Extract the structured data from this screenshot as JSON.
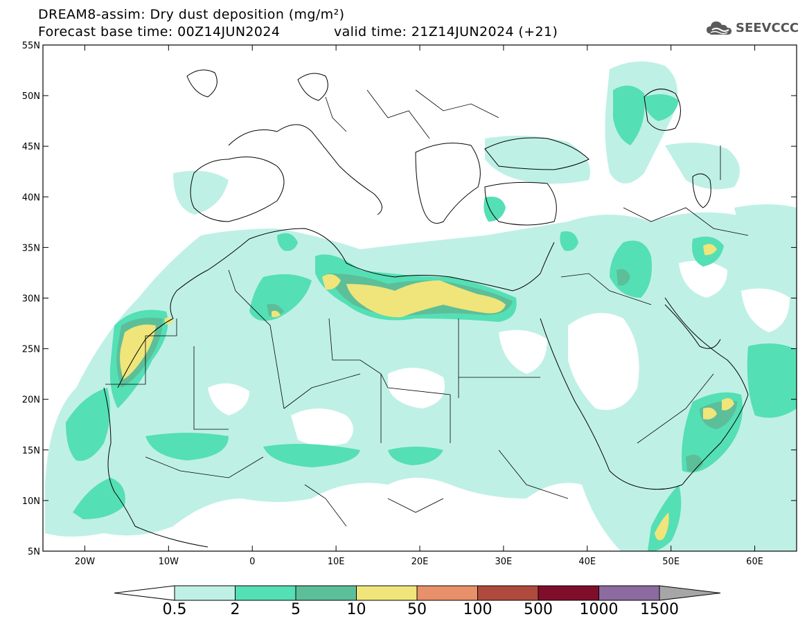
{
  "header": {
    "title_line1": "DREAM8-assim: Dry dust deposition (mg/m²)",
    "title_line2": "Forecast base time: 00Z14JUN2024",
    "valid_time": "valid time: 21Z14JUN2024 (+21)",
    "logo_text": "SEEVCCC"
  },
  "map": {
    "lon_range": [
      -25,
      65
    ],
    "lat_range": [
      5,
      55
    ],
    "lon_ticks": [
      "20W",
      "10W",
      "0",
      "10E",
      "20E",
      "30E",
      "40E",
      "50E",
      "60E"
    ],
    "lat_ticks": [
      "55N",
      "50N",
      "45N",
      "40N",
      "35N",
      "30N",
      "25N",
      "20N",
      "15N",
      "10N",
      "5N"
    ]
  },
  "colorbar": {
    "labels": [
      "0.5",
      "2",
      "5",
      "10",
      "50",
      "100",
      "500",
      "1000",
      "1500"
    ],
    "colors": [
      "#bff0e6",
      "#55dfb4",
      "#5cbf99",
      "#f0e57a",
      "#e8906a",
      "#b04a3c",
      "#7e0e2a",
      "#8c6ba0",
      "#a6a6a6"
    ],
    "under_color": "#ffffff"
  }
}
